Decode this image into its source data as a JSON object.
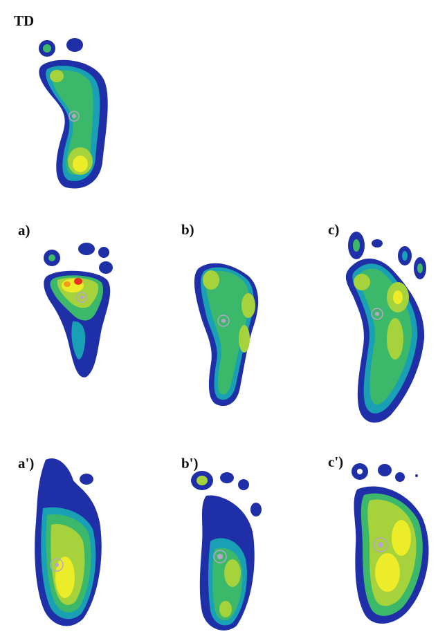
{
  "labels": {
    "td": "TD",
    "a": "a)",
    "b": "b)",
    "c": "c)",
    "a_prime": "a')",
    "b_prime": "b')",
    "c_prime": "c')"
  },
  "palette": {
    "outline": "#1f2fa8",
    "dark_blue": "#2a3cc0",
    "teal": "#19a0b4",
    "green": "#3cb86a",
    "yellow_green": "#a6d23c",
    "yellow": "#ecec28",
    "orange": "#f09a1e",
    "red": "#e8321e",
    "center_marker": "#b8a6c8"
  }
}
